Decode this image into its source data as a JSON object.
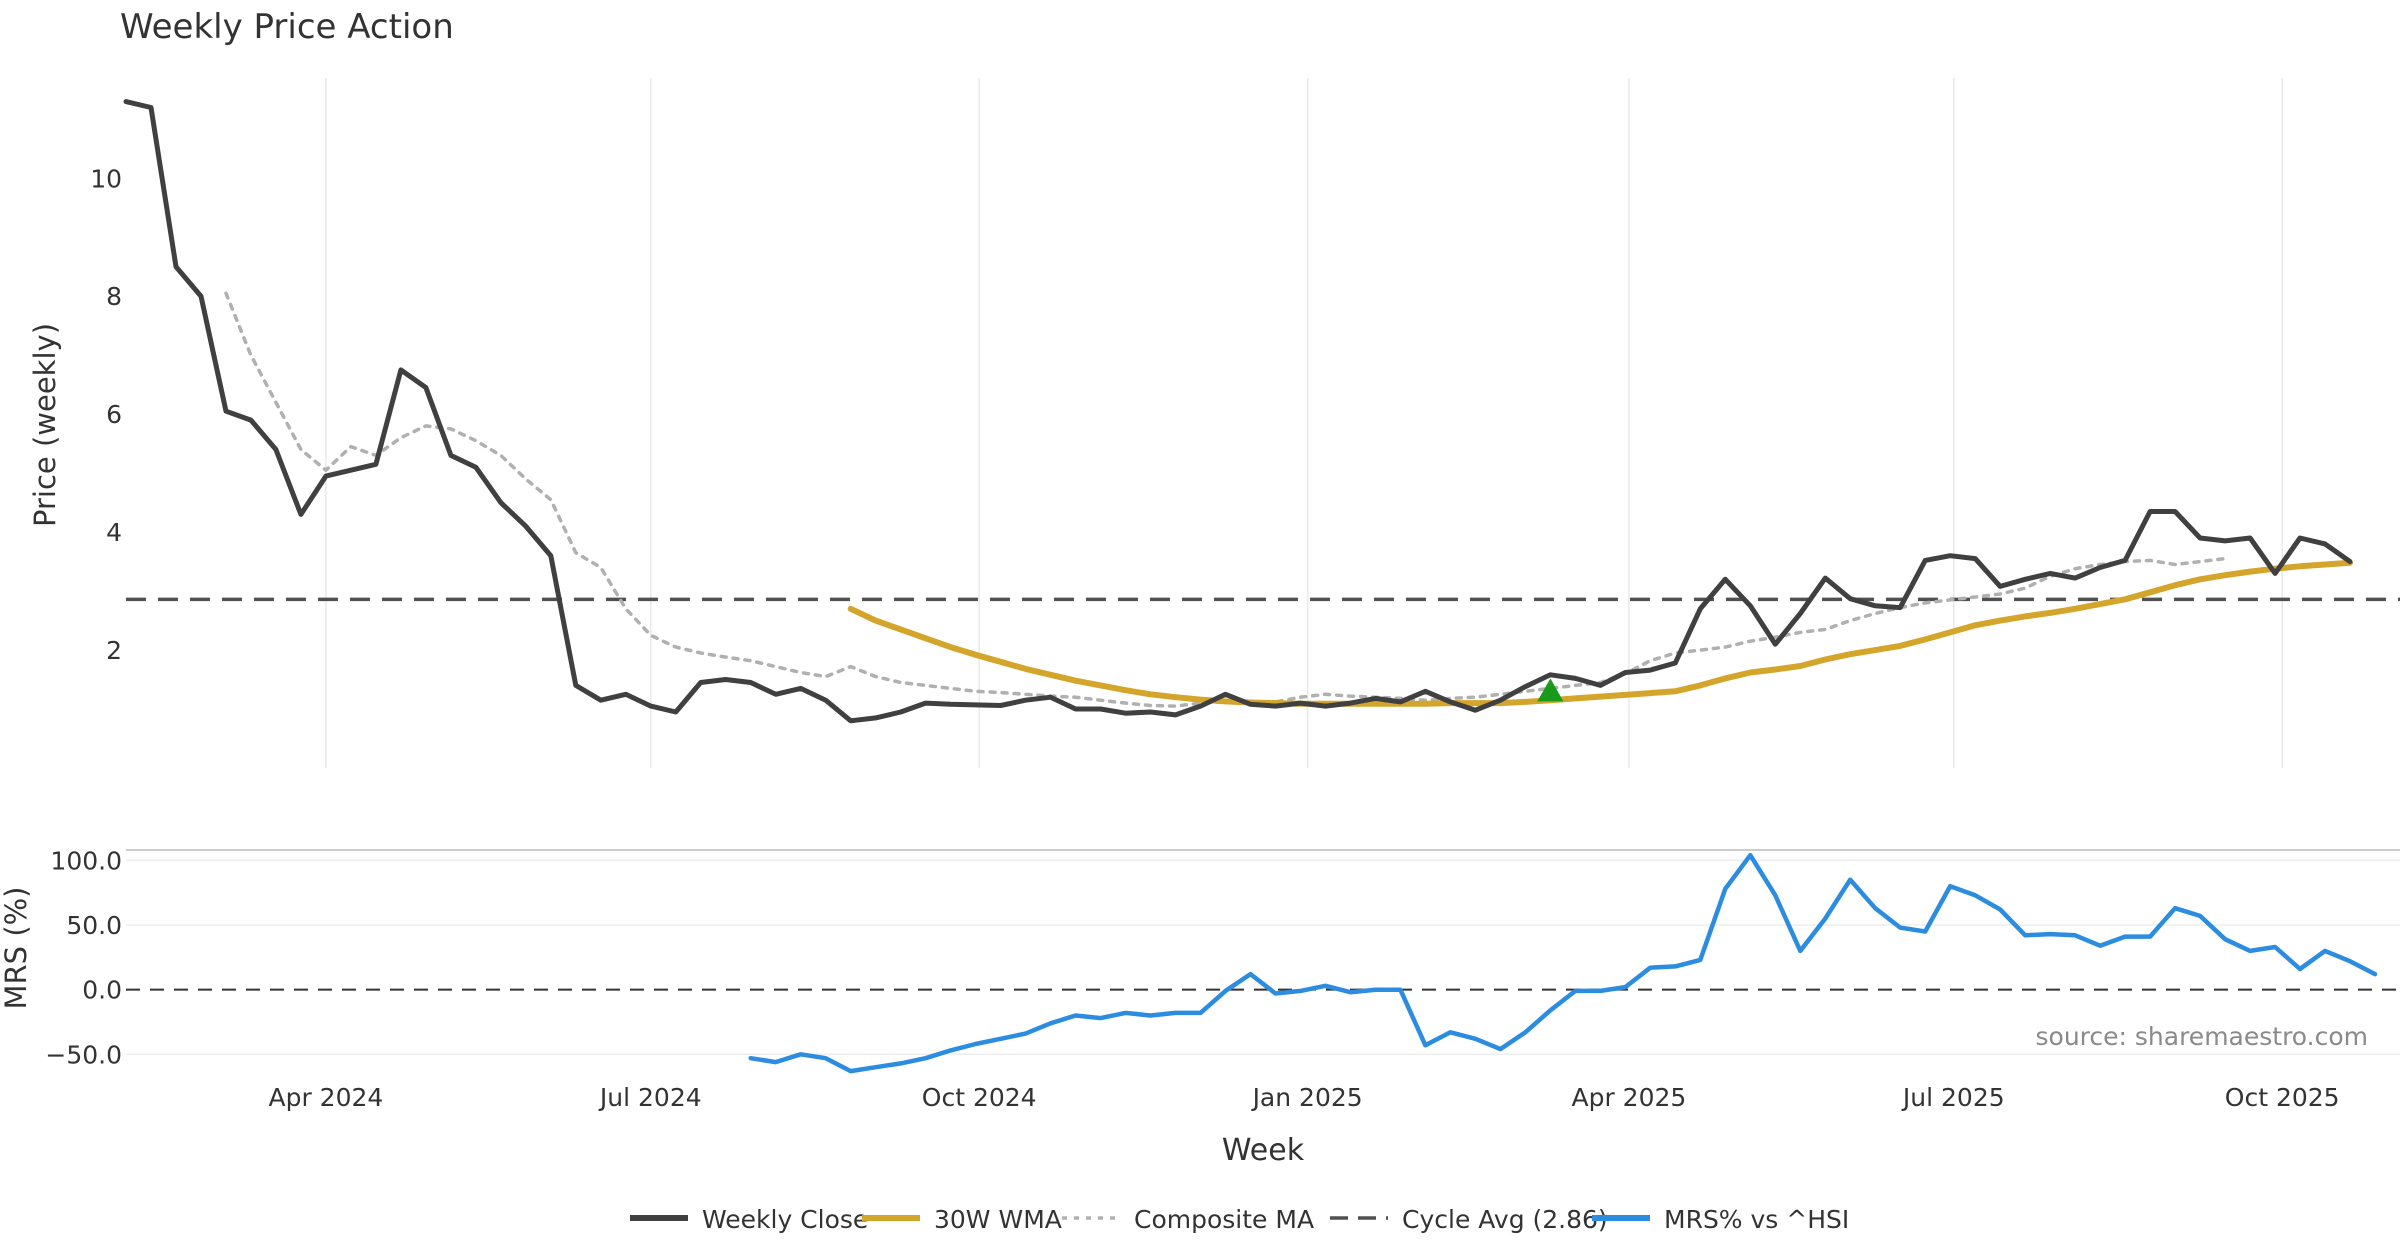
{
  "chart_data": [
    {
      "type": "line",
      "title": "Weekly Price Action",
      "ylabel": "Price (weekly)",
      "xlabel": "Week",
      "ylim": [
        0.0,
        11.7
      ],
      "yticks": [
        "2",
        "4",
        "6",
        "8",
        "10"
      ],
      "x_range": [
        "2024-02-05",
        "2025-11-03"
      ],
      "x_ticks": [
        {
          "date": "2024-04-01",
          "label": "Apr 2024"
        },
        {
          "date": "2024-07-01",
          "label": "Jul 2024"
        },
        {
          "date": "2024-10-01",
          "label": "Oct 2024"
        },
        {
          "date": "2025-01-01",
          "label": "Jan 2025"
        },
        {
          "date": "2025-04-01",
          "label": "Apr 2025"
        },
        {
          "date": "2025-07-01",
          "label": "Jul 2025"
        },
        {
          "date": "2025-10-01",
          "label": "Oct 2025"
        }
      ],
      "start_date": "2024-02-05",
      "series": [
        {
          "name": "Weekly Close",
          "color": "#404040",
          "style": "solid",
          "start_index": 0,
          "values": [
            11.3,
            11.2,
            8.5,
            8.0,
            6.05,
            5.9,
            5.4,
            4.3,
            4.95,
            5.05,
            5.15,
            6.75,
            6.45,
            5.3,
            5.1,
            4.5,
            4.1,
            3.6,
            1.4,
            1.15,
            1.25,
            1.05,
            0.95,
            1.45,
            1.5,
            1.45,
            1.25,
            1.35,
            1.15,
            0.8,
            0.85,
            0.95,
            1.1,
            1.08,
            1.07,
            1.06,
            1.15,
            1.2,
            1.0,
            1.0,
            0.93,
            0.95,
            0.9,
            1.05,
            1.25,
            1.08,
            1.05,
            1.1,
            1.05,
            1.1,
            1.18,
            1.12,
            1.3,
            1.12,
            0.98,
            1.15,
            1.38,
            1.58,
            1.52,
            1.4,
            1.62,
            1.66,
            1.78,
            2.7,
            3.2,
            2.75,
            2.1,
            2.62,
            3.22,
            2.87,
            2.75,
            2.72,
            3.52,
            3.6,
            3.55,
            3.08,
            3.2,
            3.3,
            3.22,
            3.4,
            3.52,
            4.35,
            4.35,
            3.9,
            3.85,
            3.9,
            3.3,
            3.9,
            3.8,
            3.5
          ]
        },
        {
          "name": "30W WMA",
          "color": "#d4a52b",
          "style": "solid",
          "start_index": 29,
          "values": [
            2.7,
            2.5,
            2.35,
            2.2,
            2.05,
            1.92,
            1.8,
            1.68,
            1.58,
            1.48,
            1.4,
            1.32,
            1.25,
            1.2,
            1.16,
            1.13,
            1.11,
            1.1,
            1.09,
            1.09,
            1.09,
            1.09,
            1.09,
            1.09,
            1.1,
            1.1,
            1.1,
            1.12,
            1.15,
            1.18,
            1.21,
            1.24,
            1.27,
            1.3,
            1.4,
            1.52,
            1.62,
            1.67,
            1.73,
            1.84,
            1.93,
            2.0,
            2.07,
            2.18,
            2.3,
            2.42,
            2.5,
            2.57,
            2.63,
            2.7,
            2.78,
            2.86,
            2.98,
            3.1,
            3.2,
            3.27,
            3.33,
            3.38,
            3.42,
            3.45,
            3.48
          ]
        },
        {
          "name": "Composite MA",
          "color": "#b0b0b0",
          "style": "dotted",
          "start_index": 4,
          "values": [
            8.05,
            7.0,
            6.2,
            5.4,
            5.05,
            5.45,
            5.3,
            5.6,
            5.8,
            5.75,
            5.55,
            5.3,
            4.9,
            4.55,
            3.65,
            3.4,
            2.7,
            2.25,
            2.05,
            1.95,
            1.88,
            1.82,
            1.72,
            1.62,
            1.55,
            1.72,
            1.55,
            1.45,
            1.4,
            1.35,
            1.3,
            1.28,
            1.25,
            1.22,
            1.2,
            1.15,
            1.1,
            1.06,
            1.05,
            1.1,
            1.12,
            1.1,
            1.12,
            1.2,
            1.25,
            1.22,
            1.2,
            1.18,
            1.15,
            1.18,
            1.2,
            1.25,
            1.3,
            1.35,
            1.4,
            1.45,
            1.6,
            1.82,
            1.95,
            2.0,
            2.05,
            2.15,
            2.22,
            2.3,
            2.35,
            2.5,
            2.62,
            2.72,
            2.8,
            2.85,
            2.9,
            2.95,
            3.05,
            3.25,
            3.38,
            3.45,
            3.5,
            3.52,
            3.45,
            3.5,
            3.55
          ]
        }
      ],
      "reference_line": {
        "name": "Cycle Avg (2.86)",
        "value": 2.86,
        "color": "#505050",
        "style": "dashed"
      },
      "marker": {
        "type": "triangle-up",
        "index": 57,
        "value": 1.3,
        "color": "#1a9a1a"
      }
    },
    {
      "type": "line",
      "ylabel": "MRS (%)",
      "ylim": [
        -66,
        108
      ],
      "yticks": [
        "100.0",
        "50.0",
        "0.0",
        "−50.0"
      ],
      "ytick_values": [
        100,
        50,
        0,
        -50
      ],
      "zero_line": true,
      "series": [
        {
          "name": "MRS% vs ^HSI",
          "color": "#2b8ce0",
          "style": "solid",
          "start_index": 25,
          "values": [
            -53,
            -56,
            -50,
            -53,
            -63,
            -60,
            -57,
            -53,
            -47,
            -42,
            -38,
            -34,
            -26,
            -20,
            -22,
            -18,
            -20,
            -18,
            -18,
            -1,
            12,
            -3,
            -1,
            3,
            -2,
            0,
            0,
            -43,
            -33,
            -38,
            -46,
            -33,
            -16,
            -1,
            -1,
            2,
            17,
            18,
            23,
            78,
            104,
            73,
            30,
            55,
            85,
            63,
            48,
            45,
            80,
            73,
            62,
            42,
            43,
            42,
            34,
            41,
            41,
            63,
            57,
            39,
            30,
            33,
            16,
            30,
            22,
            12
          ]
        }
      ]
    }
  ],
  "legend": [
    {
      "label": "Weekly Close",
      "color": "#404040",
      "style": "solid"
    },
    {
      "label": "30W WMA",
      "color": "#d4a52b",
      "style": "solid"
    },
    {
      "label": "Composite MA",
      "color": "#b0b0b0",
      "style": "dotted"
    },
    {
      "label": "Cycle Avg (2.86)",
      "color": "#505050",
      "style": "dashed"
    },
    {
      "label": "MRS% vs ^HSI",
      "color": "#2b8ce0",
      "style": "solid"
    }
  ],
  "source_note": "source: sharemaestro.com"
}
